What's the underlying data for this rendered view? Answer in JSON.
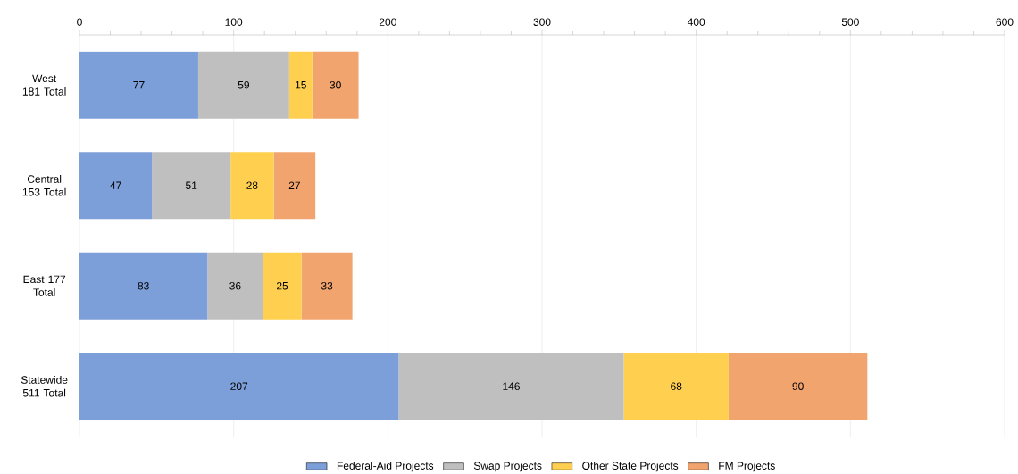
{
  "chart_data": {
    "type": "bar",
    "orientation": "horizontal",
    "stacked": true,
    "categories": [
      "West 181 Total",
      "Central 153 Total",
      "East 177 Total",
      "Statewide 511 Total"
    ],
    "series": [
      {
        "name": "Federal-Aid Projects",
        "color": "#7c9fd9",
        "values": [
          77,
          47,
          83,
          207
        ]
      },
      {
        "name": "Swap Projects",
        "color": "#bfbfbf",
        "values": [
          59,
          51,
          36,
          146
        ]
      },
      {
        "name": "Other State Projects",
        "color": "#ffd04f",
        "values": [
          15,
          28,
          25,
          68
        ]
      },
      {
        "name": "FM Projects",
        "color": "#f2a46f",
        "values": [
          30,
          27,
          33,
          90
        ]
      }
    ],
    "xlim": [
      0,
      600
    ],
    "xticks": [
      0,
      100,
      200,
      300,
      400,
      500,
      600
    ],
    "grid": "x",
    "legend": "bottom",
    "data_labels": true
  }
}
